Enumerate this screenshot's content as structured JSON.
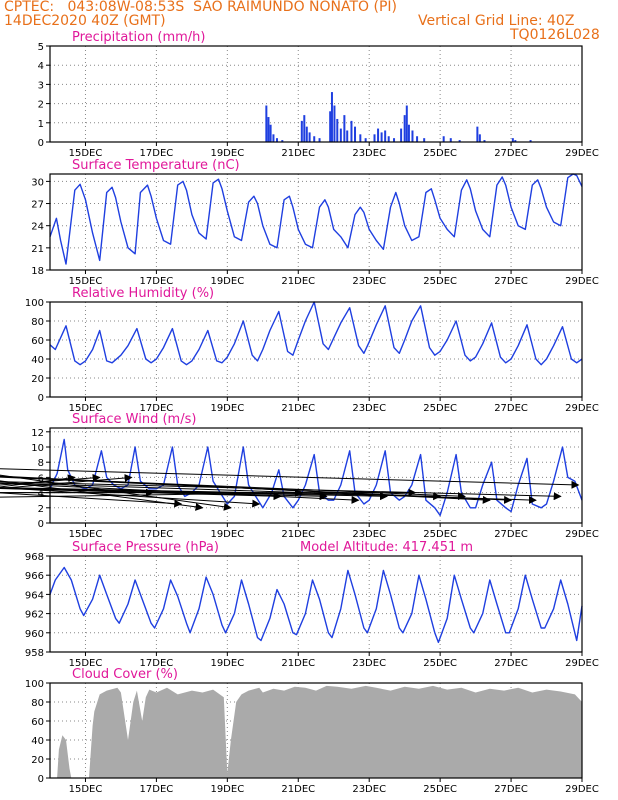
{
  "header": {
    "line1": "CPTEC:   043:08W-08:53S  SAO RAIMUNDO NONATO (PI)",
    "line2": "14DEC2020 40Z (GMT)",
    "grid_note": "Vertical Grid Line: 40Z",
    "code": "TQ0126L028"
  },
  "colors": {
    "header": "#e8701a",
    "panel_title": "#e0189a",
    "series": "#1f3fe0",
    "cloud": "#aaaaaa",
    "wind_arrow": "#000000"
  },
  "x_axis": {
    "range_days": [
      14,
      29
    ],
    "tick_days": [
      15,
      17,
      19,
      21,
      23,
      25,
      27,
      29
    ],
    "tick_labels": [
      "15DEC",
      "17DEC",
      "19DEC",
      "21DEC",
      "23DEC",
      "25DEC",
      "27DEC",
      "29DEC"
    ]
  },
  "chart_data": [
    {
      "type": "bar",
      "title": "Precipitation (mm/h)",
      "ylim": [
        0,
        5
      ],
      "yticks": [
        0,
        1,
        2,
        3,
        4,
        5
      ],
      "bars": [
        [
          20.1,
          1.9
        ],
        [
          20.16,
          1.3
        ],
        [
          20.22,
          0.9
        ],
        [
          20.3,
          0.4
        ],
        [
          20.4,
          0.2
        ],
        [
          20.55,
          0.1
        ],
        [
          21.1,
          1.1
        ],
        [
          21.17,
          1.4
        ],
        [
          21.24,
          0.8
        ],
        [
          21.32,
          0.5
        ],
        [
          21.45,
          0.3
        ],
        [
          21.6,
          0.2
        ],
        [
          21.9,
          1.6
        ],
        [
          21.95,
          2.6
        ],
        [
          22.02,
          1.9
        ],
        [
          22.1,
          1.2
        ],
        [
          22.2,
          0.7
        ],
        [
          22.3,
          1.4
        ],
        [
          22.38,
          0.6
        ],
        [
          22.5,
          1.1
        ],
        [
          22.6,
          0.8
        ],
        [
          22.75,
          0.4
        ],
        [
          22.9,
          0.2
        ],
        [
          23.15,
          0.4
        ],
        [
          23.25,
          0.7
        ],
        [
          23.35,
          0.5
        ],
        [
          23.45,
          0.6
        ],
        [
          23.55,
          0.3
        ],
        [
          23.7,
          0.2
        ],
        [
          23.9,
          0.7
        ],
        [
          24.0,
          1.4
        ],
        [
          24.06,
          1.9
        ],
        [
          24.12,
          0.9
        ],
        [
          24.22,
          0.6
        ],
        [
          24.35,
          0.3
        ],
        [
          24.55,
          0.2
        ],
        [
          25.1,
          0.3
        ],
        [
          25.3,
          0.2
        ],
        [
          25.55,
          0.1
        ],
        [
          26.05,
          0.8
        ],
        [
          26.12,
          0.4
        ],
        [
          26.25,
          0.1
        ],
        [
          27.05,
          0.2
        ],
        [
          27.12,
          0.1
        ],
        [
          27.55,
          0.1
        ]
      ]
    },
    {
      "type": "line",
      "title": "Surface Temperature (nC)",
      "ylim": [
        18,
        31
      ],
      "yticks": [
        18,
        21,
        24,
        27,
        30
      ],
      "x": [
        14.0,
        14.18,
        14.3,
        14.45,
        14.7,
        14.85,
        15.0,
        15.2,
        15.4,
        15.6,
        15.75,
        15.85,
        16.0,
        16.2,
        16.4,
        16.55,
        16.75,
        16.85,
        17.0,
        17.2,
        17.4,
        17.6,
        17.75,
        17.85,
        18.0,
        18.2,
        18.4,
        18.6,
        18.75,
        18.85,
        19.0,
        19.2,
        19.4,
        19.6,
        19.75,
        19.85,
        20.0,
        20.2,
        20.4,
        20.6,
        20.75,
        20.85,
        21.0,
        21.2,
        21.4,
        21.6,
        21.75,
        21.85,
        22.0,
        22.2,
        22.4,
        22.6,
        22.75,
        22.85,
        23.0,
        23.2,
        23.4,
        23.6,
        23.75,
        23.85,
        24.0,
        24.2,
        24.4,
        24.6,
        24.75,
        24.85,
        25.0,
        25.2,
        25.4,
        25.6,
        25.75,
        25.85,
        26.0,
        26.2,
        26.4,
        26.6,
        26.75,
        26.85,
        27.0,
        27.2,
        27.4,
        27.6,
        27.75,
        27.85,
        28.0,
        28.2,
        28.4,
        28.6,
        28.75,
        28.85,
        29.0
      ],
      "y": [
        22.5,
        25.0,
        22.0,
        18.8,
        28.8,
        29.6,
        27.5,
        23.0,
        19.3,
        28.5,
        29.2,
        27.8,
        24.5,
        21.0,
        20.2,
        28.5,
        29.5,
        28.0,
        25.0,
        22.0,
        21.5,
        29.5,
        30.0,
        28.8,
        25.5,
        23.0,
        22.2,
        29.8,
        30.3,
        29.0,
        26.0,
        22.5,
        22.0,
        27.2,
        28.0,
        27.0,
        24.0,
        21.5,
        21.0,
        27.5,
        28.0,
        26.5,
        23.5,
        21.5,
        21.0,
        26.5,
        27.5,
        26.5,
        23.5,
        22.5,
        21.0,
        25.5,
        26.5,
        25.8,
        23.5,
        22.0,
        20.8,
        26.5,
        28.5,
        27.0,
        24.0,
        22.0,
        22.5,
        28.5,
        29.0,
        27.5,
        25.0,
        23.5,
        22.5,
        28.8,
        30.2,
        29.0,
        26.0,
        23.5,
        22.5,
        29.5,
        30.6,
        29.5,
        26.5,
        24.0,
        23.5,
        29.5,
        30.2,
        29.0,
        26.5,
        24.5,
        24.0,
        30.5,
        31.0,
        30.8,
        29.3
      ]
    },
    {
      "type": "line",
      "title": "Relative Humidity (%)",
      "ylim": [
        0,
        100
      ],
      "yticks": [
        0,
        20,
        40,
        60,
        80,
        100
      ],
      "x": [
        14.0,
        14.15,
        14.45,
        14.7,
        14.85,
        15.0,
        15.2,
        15.4,
        15.6,
        15.75,
        16.0,
        16.2,
        16.45,
        16.7,
        16.85,
        17.0,
        17.2,
        17.45,
        17.7,
        17.85,
        18.0,
        18.2,
        18.45,
        18.7,
        18.85,
        19.0,
        19.2,
        19.45,
        19.7,
        19.85,
        20.0,
        20.2,
        20.45,
        20.7,
        20.85,
        21.0,
        21.2,
        21.45,
        21.7,
        21.85,
        22.0,
        22.2,
        22.45,
        22.7,
        22.85,
        23.0,
        23.2,
        23.45,
        23.7,
        23.85,
        24.0,
        24.2,
        24.45,
        24.7,
        24.85,
        25.0,
        25.2,
        25.45,
        25.7,
        25.85,
        26.0,
        26.2,
        26.45,
        26.7,
        26.85,
        27.0,
        27.2,
        27.45,
        27.7,
        27.85,
        28.0,
        28.2,
        28.45,
        28.7,
        28.85,
        29.0
      ],
      "y": [
        55.0,
        50.0,
        75.0,
        38.0,
        34.0,
        38.0,
        50.0,
        70.0,
        38.0,
        36.0,
        44.0,
        54.0,
        72.0,
        40.0,
        36.0,
        40.0,
        52.0,
        72.0,
        38.0,
        34.0,
        38.0,
        50.0,
        70.0,
        38.0,
        36.0,
        42.0,
        56.0,
        80.0,
        44.0,
        38.0,
        50.0,
        70.0,
        90.0,
        48.0,
        44.0,
        60.0,
        80.0,
        100.0,
        56.0,
        50.0,
        62.0,
        78.0,
        94.0,
        54.0,
        46.0,
        58.0,
        76.0,
        96.0,
        52.0,
        46.0,
        60.0,
        80.0,
        96.0,
        52.0,
        44.0,
        48.0,
        60.0,
        80.0,
        44.0,
        38.0,
        42.0,
        56.0,
        78.0,
        42.0,
        36.0,
        40.0,
        54.0,
        76.0,
        40.0,
        34.0,
        40.0,
        54.0,
        74.0,
        40.0,
        36.0,
        40.0
      ]
    },
    {
      "type": "line",
      "title": "Surface Wind (m/s)",
      "ylim": [
        0,
        12.5
      ],
      "yticks": [
        0,
        2,
        4,
        6,
        8,
        10,
        12
      ],
      "x": [
        14.0,
        14.2,
        14.4,
        14.5,
        14.7,
        15.0,
        15.2,
        15.45,
        15.6,
        15.8,
        16.0,
        16.2,
        16.4,
        16.55,
        16.8,
        17.0,
        17.2,
        17.45,
        17.6,
        17.8,
        18.0,
        18.2,
        18.45,
        18.6,
        18.8,
        19.0,
        19.2,
        19.45,
        19.6,
        19.8,
        20.0,
        20.25,
        20.45,
        20.6,
        20.85,
        21.0,
        21.2,
        21.45,
        21.6,
        21.85,
        22.0,
        22.2,
        22.45,
        22.6,
        22.85,
        23.0,
        23.2,
        23.45,
        23.6,
        23.85,
        24.0,
        24.2,
        24.45,
        24.6,
        24.85,
        25.0,
        25.2,
        25.45,
        25.6,
        25.85,
        26.0,
        26.2,
        26.45,
        26.6,
        26.85,
        27.0,
        27.2,
        27.45,
        27.6,
        27.85,
        28.0,
        28.2,
        28.45,
        28.6,
        28.8,
        29.0
      ],
      "y": [
        4.5,
        6.5,
        11.0,
        7.0,
        5.0,
        4.5,
        5.0,
        9.5,
        6.0,
        5.0,
        4.5,
        5.0,
        10.0,
        5.5,
        4.5,
        4.5,
        5.0,
        10.0,
        5.0,
        3.5,
        4.0,
        5.0,
        10.0,
        5.5,
        4.0,
        2.5,
        3.5,
        10.0,
        5.0,
        3.5,
        2.0,
        4.0,
        7.0,
        3.5,
        2.0,
        3.0,
        5.0,
        9.0,
        4.0,
        3.0,
        3.0,
        5.0,
        9.5,
        4.0,
        2.5,
        3.0,
        5.0,
        9.5,
        4.0,
        3.0,
        3.5,
        5.0,
        9.0,
        3.0,
        2.0,
        1.0,
        4.0,
        9.0,
        4.0,
        2.0,
        2.0,
        5.0,
        8.0,
        3.0,
        2.0,
        1.5,
        5.0,
        8.5,
        2.5,
        2.0,
        2.5,
        5.5,
        10.0,
        6.0,
        5.5,
        3.0
      ],
      "arrows": [
        [
          14.7,
          6.0,
          8.0,
          2
        ],
        [
          15.4,
          6.0,
          7.0,
          3
        ],
        [
          16.3,
          6.0,
          6.0,
          2
        ],
        [
          16.9,
          4.0,
          8.0,
          4
        ],
        [
          17.7,
          2.5,
          9.0,
          5
        ],
        [
          18.3,
          2.0,
          7.0,
          9
        ],
        [
          19.1,
          2.0,
          7.0,
          10
        ],
        [
          19.9,
          2.5,
          8.0,
          6
        ],
        [
          20.5,
          3.5,
          9.0,
          5
        ],
        [
          21.1,
          4.0,
          7.0,
          3
        ],
        [
          21.8,
          3.5,
          9.0,
          5
        ],
        [
          22.7,
          3.0,
          9.0,
          6
        ],
        [
          23.5,
          3.5,
          9.0,
          5
        ],
        [
          24.3,
          4.0,
          8.0,
          4
        ],
        [
          25.0,
          3.5,
          9.0,
          5
        ],
        [
          25.7,
          3.5,
          8.0,
          7
        ],
        [
          26.4,
          3.0,
          9.0,
          7
        ],
        [
          27.0,
          3.0,
          8.0,
          7
        ],
        [
          27.7,
          3.0,
          8.0,
          6
        ],
        [
          28.4,
          3.5,
          8.0,
          6
        ],
        [
          28.9,
          5.0,
          6.0,
          8
        ]
      ]
    },
    {
      "type": "line",
      "title": "Surface Pressure (hPa)",
      "annotation": "Model Altitude: 417.451 m",
      "ylim": [
        958,
        968
      ],
      "yticks": [
        958,
        960,
        962,
        964,
        966,
        968
      ],
      "x": [
        14.0,
        14.15,
        14.4,
        14.6,
        14.85,
        14.95,
        15.2,
        15.4,
        15.6,
        15.85,
        15.95,
        16.2,
        16.4,
        16.6,
        16.85,
        16.95,
        17.2,
        17.4,
        17.6,
        17.85,
        17.95,
        18.2,
        18.4,
        18.6,
        18.85,
        18.95,
        19.2,
        19.4,
        19.6,
        19.85,
        19.95,
        20.2,
        20.4,
        20.6,
        20.85,
        20.95,
        21.2,
        21.4,
        21.6,
        21.85,
        21.95,
        22.2,
        22.4,
        22.6,
        22.85,
        22.95,
        23.2,
        23.4,
        23.6,
        23.85,
        23.95,
        24.2,
        24.4,
        24.6,
        24.85,
        24.95,
        25.2,
        25.4,
        25.6,
        25.85,
        25.95,
        26.2,
        26.4,
        26.6,
        26.85,
        26.95,
        27.2,
        27.4,
        27.6,
        27.85,
        27.95,
        28.2,
        28.4,
        28.6,
        28.85,
        29.0
      ],
      "y": [
        964.0,
        965.5,
        966.8,
        965.5,
        962.5,
        961.8,
        963.5,
        966.0,
        964.0,
        961.5,
        961.0,
        963.0,
        965.5,
        963.5,
        961.0,
        960.5,
        962.5,
        965.5,
        963.8,
        961.0,
        960.0,
        962.5,
        965.8,
        964.0,
        960.8,
        960.0,
        962.0,
        965.5,
        963.0,
        959.5,
        959.2,
        961.5,
        964.5,
        963.0,
        960.0,
        959.8,
        962.0,
        965.5,
        963.5,
        960.0,
        959.5,
        962.5,
        966.5,
        964.0,
        960.5,
        960.0,
        962.5,
        966.5,
        964.0,
        960.5,
        960.0,
        962.0,
        966.0,
        963.5,
        960.0,
        959.0,
        961.5,
        966.0,
        963.5,
        960.5,
        960.0,
        962.0,
        965.5,
        963.0,
        960.0,
        960.0,
        962.5,
        966.0,
        963.5,
        960.5,
        960.5,
        962.5,
        965.5,
        963.0,
        959.2,
        962.8
      ]
    },
    {
      "type": "area",
      "title": "Cloud Cover (%)",
      "ylim": [
        0,
        100
      ],
      "yticks": [
        0,
        20,
        40,
        60,
        80,
        100
      ],
      "x": [
        14.0,
        14.2,
        14.25,
        14.35,
        14.45,
        14.55,
        14.6,
        14.7,
        15.1,
        15.2,
        15.25,
        15.4,
        15.6,
        15.9,
        16.0,
        16.2,
        16.35,
        16.45,
        16.6,
        16.7,
        16.8,
        17.0,
        17.3,
        17.6,
        18.0,
        18.3,
        18.6,
        18.9,
        19.0,
        19.1,
        19.25,
        19.4,
        19.6,
        19.9,
        20.0,
        20.3,
        20.6,
        20.9,
        21.2,
        21.5,
        21.8,
        22.1,
        22.5,
        22.9,
        23.2,
        23.6,
        24.0,
        24.4,
        24.8,
        25.2,
        25.6,
        26.0,
        26.4,
        26.8,
        27.2,
        27.6,
        28.0,
        28.4,
        28.8,
        29.0
      ],
      "y": [
        0.0,
        0.0,
        30.0,
        45.0,
        40.0,
        10.0,
        0.0,
        0.0,
        0.0,
        55.0,
        70.0,
        88.0,
        92.0,
        95.0,
        90.0,
        40.0,
        80.0,
        92.0,
        60.0,
        85.0,
        93.0,
        90.0,
        95.0,
        88.0,
        92.0,
        90.0,
        93.0,
        85.0,
        5.0,
        40.0,
        80.0,
        88.0,
        92.0,
        95.0,
        90.0,
        94.0,
        92.0,
        96.0,
        95.0,
        92.0,
        97.0,
        96.0,
        94.0,
        97.0,
        95.0,
        92.0,
        96.0,
        94.0,
        97.0,
        93.0,
        95.0,
        90.0,
        94.0,
        92.0,
        95.0,
        90.0,
        93.0,
        91.0,
        88.0,
        80.0
      ]
    }
  ]
}
